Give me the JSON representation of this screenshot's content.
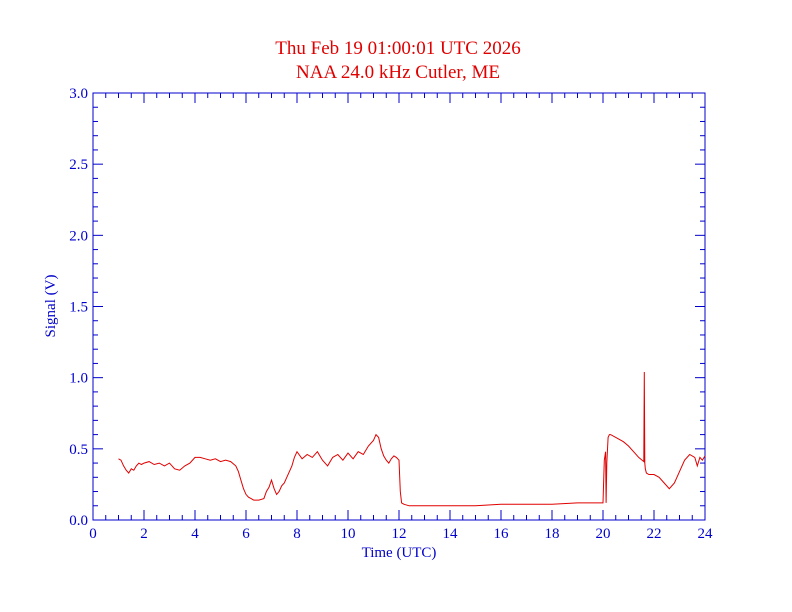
{
  "chart_data": {
    "type": "line",
    "title": "Thu Feb 19 01:00:01 UTC 2026",
    "subtitle": "NAA 24.0 kHz Cutler, ME",
    "xlabel": "Time (UTC)",
    "ylabel": "Signal (V)",
    "xlim": [
      0,
      24
    ],
    "ylim": [
      0,
      3.0
    ],
    "x_major_ticks": [
      0,
      2,
      4,
      6,
      8,
      10,
      12,
      14,
      16,
      18,
      20,
      22,
      24
    ],
    "x_tick_labels": [
      "0",
      "2",
      "4",
      "6",
      "8",
      "10",
      "12",
      "14",
      "16",
      "18",
      "20",
      "22",
      "24"
    ],
    "y_major_ticks": [
      0,
      0.5,
      1.0,
      1.5,
      2.0,
      2.5,
      3.0
    ],
    "y_tick_labels": [
      "0.0",
      "0.5",
      "1.0",
      "1.5",
      "2.0",
      "2.5",
      "3.0"
    ],
    "grid": false,
    "colors": {
      "series": "#e00000",
      "axes": "#0000cc",
      "title": "#e00000"
    },
    "series": [
      {
        "x": [
          1.0,
          1.1,
          1.2,
          1.3,
          1.4,
          1.5,
          1.6,
          1.7,
          1.8,
          1.9,
          2.0,
          2.2,
          2.4,
          2.6,
          2.8,
          3.0,
          3.2,
          3.4,
          3.6,
          3.8,
          4.0,
          4.2,
          4.4,
          4.6,
          4.8,
          5.0,
          5.2,
          5.4,
          5.6,
          5.7,
          5.8,
          5.9,
          6.0,
          6.1,
          6.2,
          6.3,
          6.5,
          6.7,
          6.8,
          6.9,
          7.0,
          7.1,
          7.2,
          7.3,
          7.4,
          7.5,
          7.6,
          7.7,
          7.8,
          7.9,
          8.0,
          8.2,
          8.4,
          8.6,
          8.8,
          9.0,
          9.2,
          9.4,
          9.6,
          9.8,
          10.0,
          10.2,
          10.4,
          10.6,
          10.8,
          11.0,
          11.1,
          11.2,
          11.3,
          11.4,
          11.5,
          11.6,
          11.7,
          11.8,
          11.9,
          12.0,
          12.05,
          12.1,
          12.2,
          12.4,
          13.0,
          14.0,
          15.0,
          16.0,
          17.0,
          18.0,
          19.0,
          19.9,
          20.0,
          20.05,
          20.1,
          20.12,
          20.15,
          20.2,
          20.25,
          20.3,
          20.5,
          20.8,
          21.0,
          21.2,
          21.4,
          21.6,
          21.62,
          21.64,
          21.66,
          21.7,
          21.8,
          22.0,
          22.2,
          22.4,
          22.6,
          22.8,
          23.0,
          23.2,
          23.4,
          23.6,
          23.7,
          23.8,
          23.9,
          24.0
        ],
        "y": [
          0.43,
          0.42,
          0.38,
          0.35,
          0.33,
          0.36,
          0.35,
          0.38,
          0.4,
          0.39,
          0.4,
          0.41,
          0.39,
          0.4,
          0.38,
          0.4,
          0.36,
          0.35,
          0.38,
          0.4,
          0.44,
          0.44,
          0.43,
          0.42,
          0.43,
          0.41,
          0.42,
          0.41,
          0.38,
          0.34,
          0.28,
          0.22,
          0.18,
          0.16,
          0.15,
          0.14,
          0.14,
          0.15,
          0.2,
          0.23,
          0.28,
          0.22,
          0.18,
          0.2,
          0.24,
          0.26,
          0.3,
          0.34,
          0.38,
          0.44,
          0.48,
          0.43,
          0.46,
          0.44,
          0.48,
          0.42,
          0.38,
          0.44,
          0.46,
          0.42,
          0.47,
          0.43,
          0.48,
          0.46,
          0.52,
          0.56,
          0.6,
          0.58,
          0.5,
          0.45,
          0.42,
          0.4,
          0.43,
          0.45,
          0.44,
          0.42,
          0.2,
          0.12,
          0.11,
          0.1,
          0.1,
          0.1,
          0.1,
          0.11,
          0.11,
          0.11,
          0.12,
          0.12,
          0.12,
          0.42,
          0.48,
          0.12,
          0.4,
          0.58,
          0.6,
          0.6,
          0.58,
          0.55,
          0.52,
          0.48,
          0.44,
          0.41,
          1.04,
          0.4,
          0.36,
          0.33,
          0.32,
          0.32,
          0.3,
          0.26,
          0.22,
          0.26,
          0.34,
          0.42,
          0.46,
          0.44,
          0.38,
          0.44,
          0.42,
          0.45
        ]
      }
    ]
  }
}
